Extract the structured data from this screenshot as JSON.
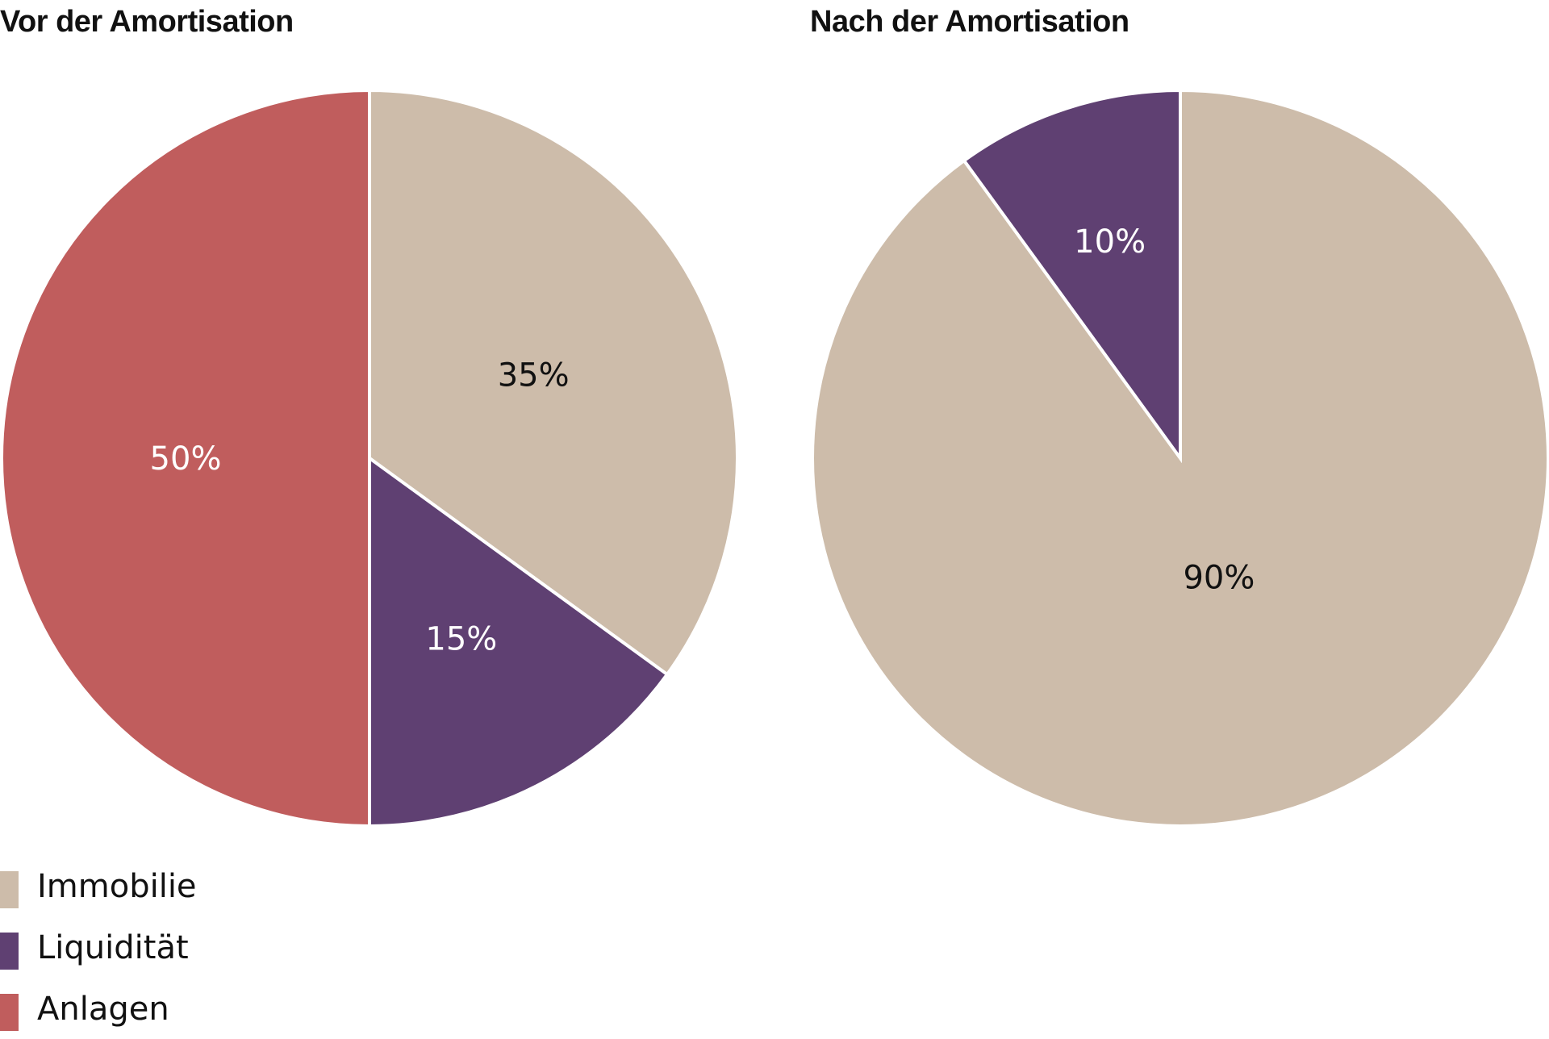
{
  "chart_data": [
    {
      "type": "pie",
      "title": "Vor der Amortisation",
      "categories": [
        "Immobilie",
        "Liquidität",
        "Anlagen"
      ],
      "values": [
        35,
        15,
        50
      ],
      "labels": [
        "35%",
        "15%",
        "50%"
      ],
      "colors": [
        "#cdbcaa",
        "#5f4072",
        "#c05d5d"
      ],
      "start_angle_deg": 0,
      "direction": "clockwise"
    },
    {
      "type": "pie",
      "title": "Nach der Amortisation",
      "categories": [
        "Immobilie",
        "Liquidität"
      ],
      "values": [
        90,
        10
      ],
      "labels": [
        "90%",
        "10%"
      ],
      "colors": [
        "#cdbcaa",
        "#5f4072"
      ],
      "start_angle_deg": 0,
      "direction": "clockwise"
    }
  ],
  "titles": {
    "left": "Vor der Amortisation",
    "right": "Nach der Amortisation"
  },
  "legend": {
    "position": "bottom-left",
    "items": [
      {
        "label": "Immobilie",
        "color": "#cdbcaa"
      },
      {
        "label": "Liquidität",
        "color": "#5f4072"
      },
      {
        "label": "Anlagen",
        "color": "#c05d5d"
      }
    ]
  },
  "label_colors": {
    "on_light": "#111111",
    "on_dark": "#ffffff"
  }
}
